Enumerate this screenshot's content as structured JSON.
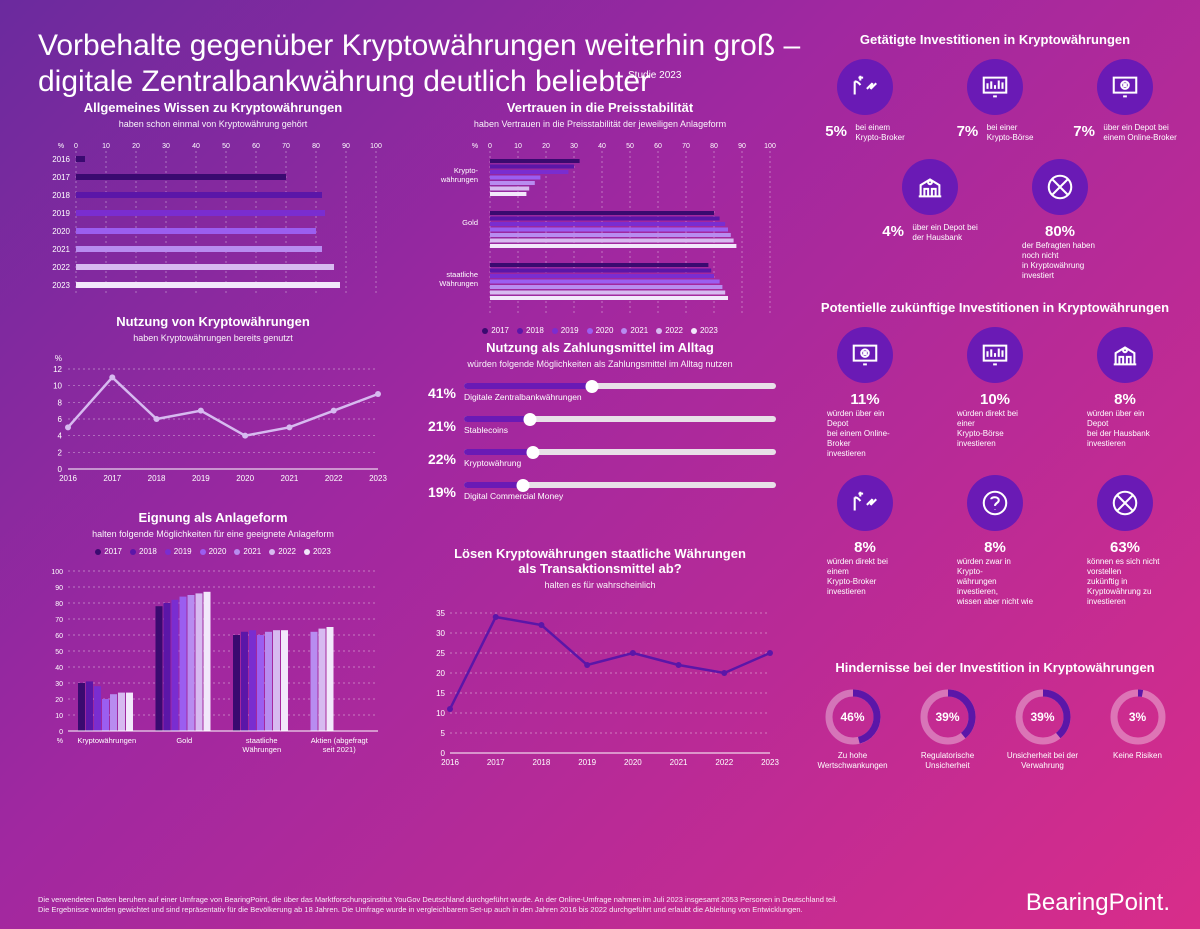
{
  "headline": "Vorbehalte gegenüber Kryptowährungen weiterhin groß –\ndigitale Zentralbankwährung deutlich beliebter",
  "headline_sub": "Studie 2023",
  "years": [
    "2016",
    "2017",
    "2018",
    "2019",
    "2020",
    "2021",
    "2022",
    "2023"
  ],
  "year_colors": {
    "2017": "#3a0a70",
    "2018": "#5b16a8",
    "2019": "#7a2dd0",
    "2020": "#9b5ef0",
    "2021": "#b88cf0",
    "2022": "#d7baf0",
    "2023": "#f2e8fb"
  },
  "awareness": {
    "title": "Allgemeines Wissen zu Kryptowährungen",
    "sub": "haben schon einmal von Kryptowährung gehört",
    "xmax": 100,
    "xtick_step": 10,
    "values": {
      "2016": 3,
      "2017": 70,
      "2018": 82,
      "2019": 83,
      "2020": 80,
      "2021": 82,
      "2022": 86,
      "2023": 88
    }
  },
  "trust": {
    "title": "Vertrauen in die Preisstabilität",
    "sub": "haben Vertrauen in die Preisstabilität der jeweiligen Anlageform",
    "xmax": 100,
    "xtick_step": 10,
    "groups": [
      {
        "label": "Krypto-\nwährungen",
        "icon": "crypto",
        "values": {
          "2017": 32,
          "2018": 30,
          "2019": 28,
          "2020": 18,
          "2021": 16,
          "2022": 14,
          "2023": 13
        }
      },
      {
        "label": "Gold",
        "icon": "gold",
        "values": {
          "2017": 80,
          "2018": 82,
          "2019": 84,
          "2020": 85,
          "2021": 86,
          "2022": 87,
          "2023": 88
        }
      },
      {
        "label": "staatliche\nWährungen",
        "icon": "cash",
        "values": {
          "2017": 78,
          "2018": 79,
          "2019": 80,
          "2020": 82,
          "2021": 83,
          "2022": 84,
          "2023": 85
        }
      }
    ]
  },
  "usage": {
    "title": "Nutzung von Kryptowährungen",
    "sub": "haben Kryptowährungen bereits genutzt",
    "ymax": 12,
    "ytick_step": 2,
    "values": [
      5,
      11,
      6,
      7,
      4,
      5,
      7,
      9
    ],
    "line_color": "#d7baf0"
  },
  "payment": {
    "title": "Nutzung als Zahlungsmittel im Alltag",
    "sub": "würden folgende Möglichkeiten als Zahlungsmittel im Alltag nutzen",
    "items": [
      {
        "pct": 41,
        "label": "Digitale Zentralbankwährungen"
      },
      {
        "pct": 21,
        "label": "Stablecoins"
      },
      {
        "pct": 22,
        "label": "Kryptowährung"
      },
      {
        "pct": 19,
        "label": "Digital Commercial Money"
      }
    ],
    "fill_color": "#6a1ab5",
    "track_color": "#e8e0e8"
  },
  "suitability": {
    "title": "Eignung als Anlageform",
    "sub": "halten folgende Möglichkeiten für eine geeignete Anlageform",
    "ymax": 100,
    "ytick_step": 10,
    "categories": [
      "Kryptowährungen",
      "Gold",
      "staatliche\nWährungen",
      "Aktien (abgefragt\nseit 2021)"
    ],
    "series": {
      "2017": [
        30,
        78,
        60,
        null
      ],
      "2018": [
        31,
        80,
        62,
        null
      ],
      "2019": [
        28,
        82,
        63,
        null
      ],
      "2020": [
        20,
        84,
        60,
        null
      ],
      "2021": [
        23,
        85,
        62,
        62
      ],
      "2022": [
        24,
        86,
        63,
        64
      ],
      "2023": [
        24,
        87,
        63,
        65
      ]
    }
  },
  "replace": {
    "title": "Lösen Kryptowährungen staatliche Währungen\nals Transaktionsmittel ab?",
    "sub": "halten es für wahrscheinlich",
    "ymax": 35,
    "ytick_step": 5,
    "values": [
      11,
      34,
      32,
      22,
      25,
      22,
      20,
      25
    ],
    "line_color": "#5b16a8"
  },
  "invest_made": {
    "title": "Getätigte Investitionen in Kryptowährungen",
    "items": [
      {
        "icon": "broker",
        "pct": "5%",
        "label": "bei einem\nKrypto-Broker"
      },
      {
        "icon": "exchange",
        "pct": "7%",
        "label": "bei einer\nKrypto-Börse"
      },
      {
        "icon": "online",
        "pct": "7%",
        "label": "über ein Depot bei\neinem Online-Broker"
      },
      {
        "icon": "bank",
        "pct": "4%",
        "label": "über ein Depot bei\nder Hausbank"
      },
      {
        "icon": "cross",
        "pct": "80%",
        "label": "der Befragten haben noch nicht\nin Kryptowährung investiert"
      }
    ]
  },
  "invest_future": {
    "title": "Potentielle zukünftige Investitionen in Kryptowährungen",
    "items": [
      {
        "icon": "online",
        "pct": "11%",
        "label": "würden über ein Depot\nbei einem Online-Broker\ninvestieren"
      },
      {
        "icon": "exchange",
        "pct": "10%",
        "label": "würden direkt bei einer\nKrypto-Börse investieren"
      },
      {
        "icon": "bank",
        "pct": "8%",
        "label": "würden über ein Depot\nbei der Hausbank\ninvestieren"
      },
      {
        "icon": "broker",
        "pct": "8%",
        "label": "würden direkt bei einem\nKrypto-Broker investieren"
      },
      {
        "icon": "question",
        "pct": "8%",
        "label": "würden zwar in Krypto-\nwährungen investieren,\nwissen aber nicht wie"
      },
      {
        "icon": "cross",
        "pct": "63%",
        "label": "können es sich nicht vorstellen\nzukünftig in Kryptowährung zu\ninvestieren"
      }
    ]
  },
  "obstacles": {
    "title": "Hindernisse bei der Investition in Kryptowährungen",
    "ring_bg": "rgba(255,255,255,.35)",
    "ring_fg": "#5b16a8",
    "items": [
      {
        "pct": 46,
        "label": "Zu hohe\nWertschwankungen"
      },
      {
        "pct": 39,
        "label": "Regulatorische\nUnsicherheit"
      },
      {
        "pct": 39,
        "label": "Unsicherheit bei der\nVerwahrung"
      },
      {
        "pct": 3,
        "label": "Keine Risiken"
      }
    ]
  },
  "footnote": "Die verwendeten Daten beruhen auf einer Umfrage von BearingPoint, die über das Marktforschungsinstitut YouGov Deutschland durchgeführt wurde. An der Online-Umfrage nahmen im Juli 2023 insgesamt 2053 Personen in Deutschland teil.\nDie Ergebnisse wurden gewichtet und sind repräsentativ für die Bevölkerung ab 18 Jahren. Die Umfrage wurde in vergleichbarem Set-up auch in den Jahren 2016 bis 2022 durchgeführt und erlaubt die Ableitung von Entwicklungen.",
  "brand": "BearingPoint"
}
